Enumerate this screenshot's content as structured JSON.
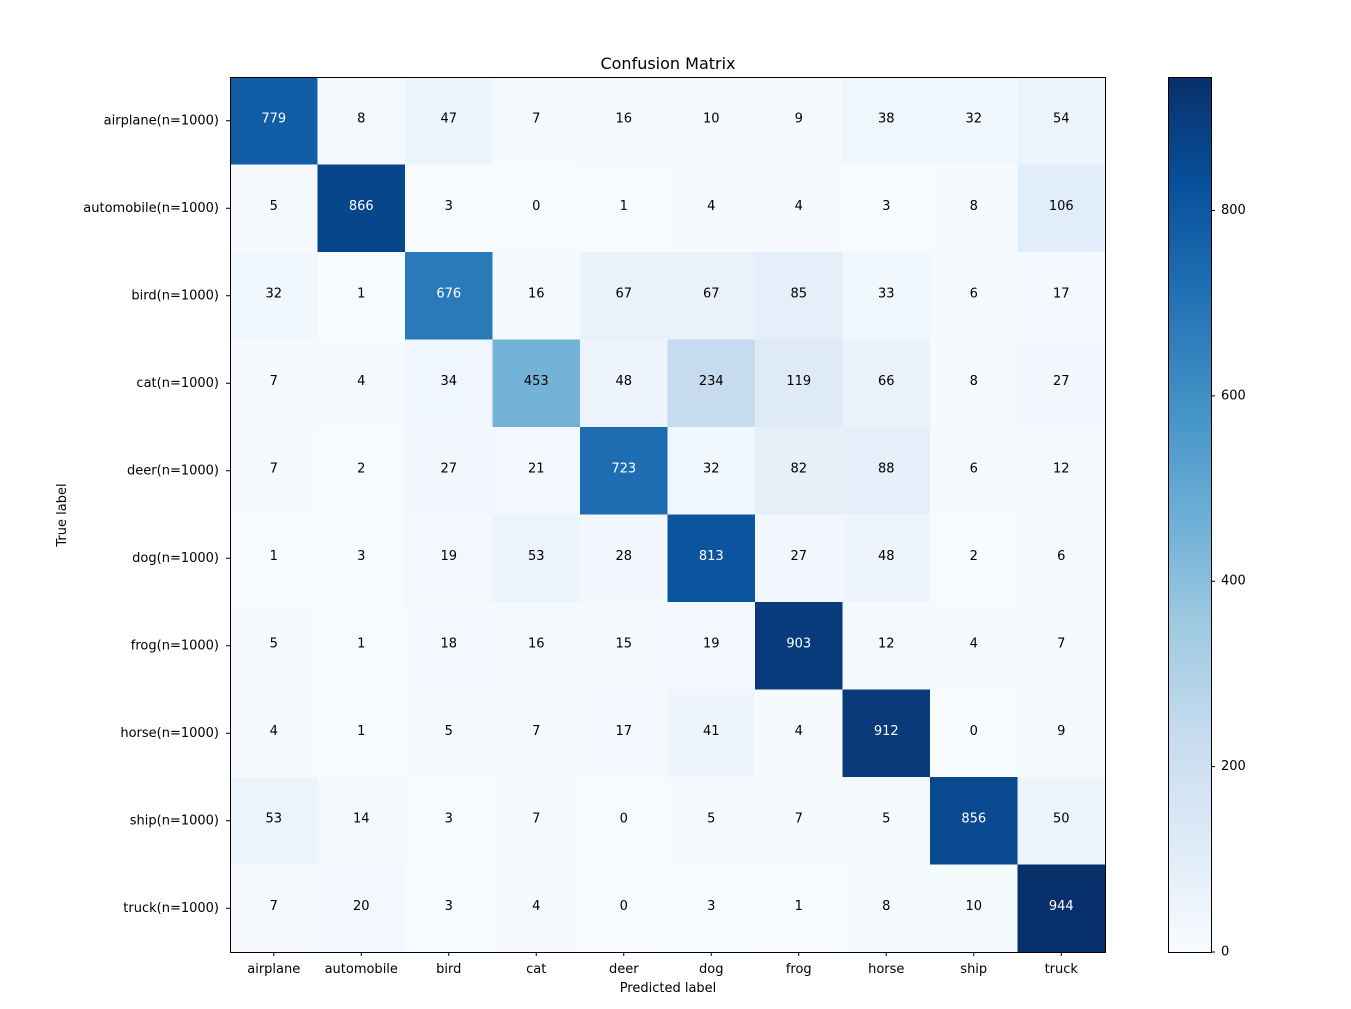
{
  "chart_data": {
    "type": "heatmap",
    "title": "Confusion Matrix",
    "xlabel": "Predicted label",
    "ylabel": "True label",
    "x_categories": [
      "airplane",
      "automobile",
      "bird",
      "cat",
      "deer",
      "dog",
      "frog",
      "horse",
      "ship",
      "truck"
    ],
    "y_categories": [
      "airplane(n=1000)",
      "automobile(n=1000)",
      "bird(n=1000)",
      "cat(n=1000)",
      "deer(n=1000)",
      "dog(n=1000)",
      "frog(n=1000)",
      "horse(n=1000)",
      "ship(n=1000)",
      "truck(n=1000)"
    ],
    "values": [
      [
        779,
        8,
        47,
        7,
        16,
        10,
        9,
        38,
        32,
        54
      ],
      [
        5,
        866,
        3,
        0,
        1,
        4,
        4,
        3,
        8,
        106
      ],
      [
        32,
        1,
        676,
        16,
        67,
        67,
        85,
        33,
        6,
        17
      ],
      [
        7,
        4,
        34,
        453,
        48,
        234,
        119,
        66,
        8,
        27
      ],
      [
        7,
        2,
        27,
        21,
        723,
        32,
        82,
        88,
        6,
        12
      ],
      [
        1,
        3,
        19,
        53,
        28,
        813,
        27,
        48,
        2,
        6
      ],
      [
        5,
        1,
        18,
        16,
        15,
        19,
        903,
        12,
        4,
        7
      ],
      [
        4,
        1,
        5,
        7,
        17,
        41,
        4,
        912,
        0,
        9
      ],
      [
        53,
        14,
        3,
        7,
        0,
        5,
        7,
        5,
        856,
        50
      ],
      [
        7,
        20,
        3,
        4,
        0,
        3,
        1,
        8,
        10,
        944
      ]
    ],
    "colorscale": "Blues",
    "color_range": [
      0,
      944
    ],
    "colorbar_ticks": [
      0,
      200,
      400,
      600,
      800
    ],
    "colorbar_tick_labels": [
      "0",
      "200",
      "400",
      "600",
      "800"
    ],
    "grid": false,
    "colorbar_placement": "right"
  }
}
